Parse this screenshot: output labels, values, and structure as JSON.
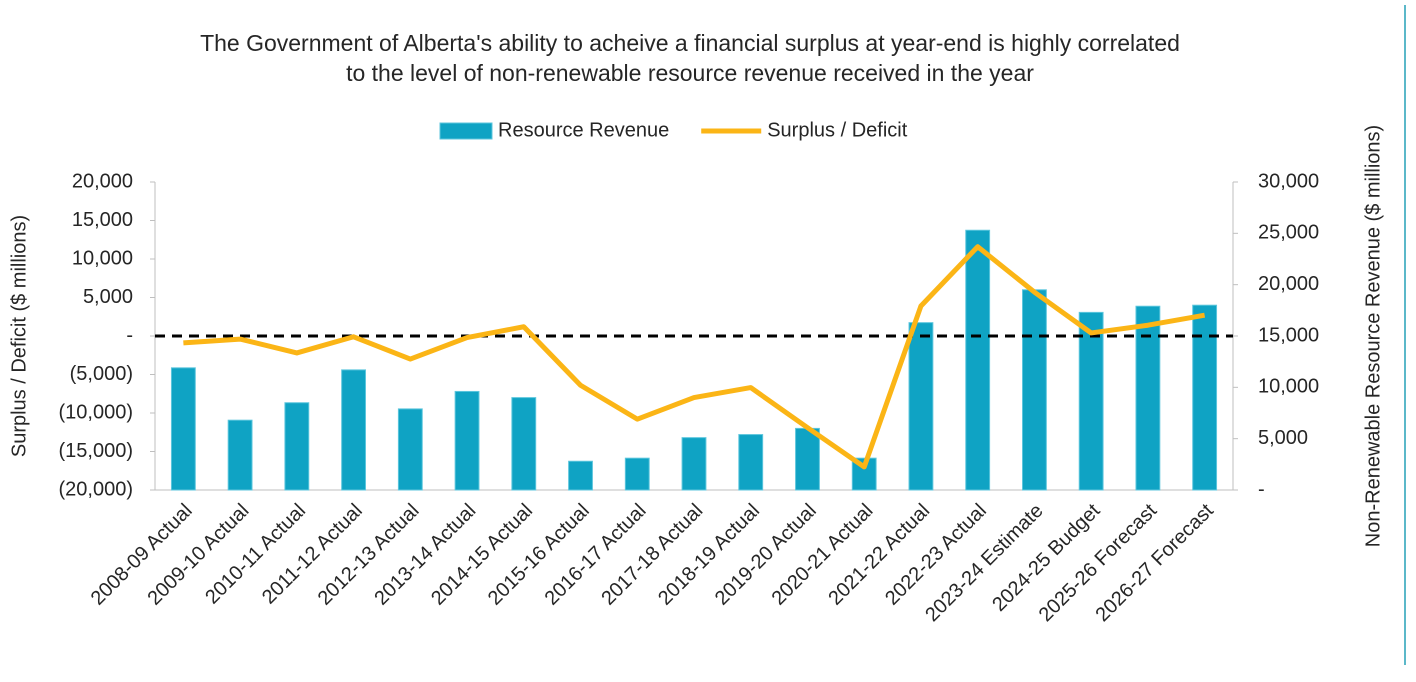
{
  "chart_data": {
    "type": "combo",
    "title": [
      "The Government of Alberta's ability to acheive a financial surplus at year-end is highly correlated",
      "to the level of non-renewable resource revenue received in the year"
    ],
    "y_label": "Surplus / Deficit ($ millions)",
    "y2_label": "Non-Renewable Resource Revenue ($ millions)",
    "categories": [
      "2008-09 Actual",
      "2009-10 Actual",
      "2010-11 Actual",
      "2011-12 Actual",
      "2012-13 Actual",
      "2013-14 Actual",
      "2014-15 Actual",
      "2015-16 Actual",
      "2016-17 Actual",
      "2017-18 Actual",
      "2018-19 Actual",
      "2019-20 Actual",
      "2020-21 Actual",
      "2021-22 Actual",
      "2022-23 Actual",
      "2023-24 Estimate",
      "2024-25 Budget",
      "2025-26 Forecast",
      "2026-27 Forecast"
    ],
    "series": [
      {
        "name": "Resource Revenue",
        "type": "bar",
        "axis": "y2",
        "color": "#0fa3c4",
        "values": [
          11900,
          6800,
          8500,
          11700,
          7900,
          9600,
          9000,
          2800,
          3100,
          5100,
          5400,
          6000,
          3100,
          16300,
          25300,
          19500,
          17300,
          17900,
          18000
        ]
      },
      {
        "name": "Surplus / Deficit",
        "type": "line",
        "axis": "y",
        "color": "#fbb516",
        "values": [
          -900,
          -400,
          -2200,
          -100,
          -3000,
          -200,
          1200,
          -6400,
          -10800,
          -8000,
          -6700,
          -11900,
          -17000,
          3900,
          11600,
          5700,
          400,
          1400,
          2700
        ]
      }
    ],
    "ylim": [
      -20000,
      20000
    ],
    "yticks": [
      {
        "value": 20000,
        "label": "20,000"
      },
      {
        "value": 15000,
        "label": "15,000"
      },
      {
        "value": 10000,
        "label": "10,000"
      },
      {
        "value": 5000,
        "label": "5,000"
      },
      {
        "value": 0,
        "label": "-"
      },
      {
        "value": -5000,
        "label": "(5,000)"
      },
      {
        "value": -10000,
        "label": "(10,000)"
      },
      {
        "value": -15000,
        "label": "(15,000)"
      },
      {
        "value": -20000,
        "label": "(20,000)"
      }
    ],
    "y2lim": [
      0,
      30000
    ],
    "y2ticks": [
      {
        "value": 30000,
        "label": "30,000"
      },
      {
        "value": 25000,
        "label": "25,000"
      },
      {
        "value": 20000,
        "label": "20,000"
      },
      {
        "value": 15000,
        "label": "15,000"
      },
      {
        "value": 10000,
        "label": "10,000"
      },
      {
        "value": 5000,
        "label": "5,000"
      },
      {
        "value": 0,
        "label": "-"
      }
    ],
    "legend": "top",
    "zero_line": true
  }
}
